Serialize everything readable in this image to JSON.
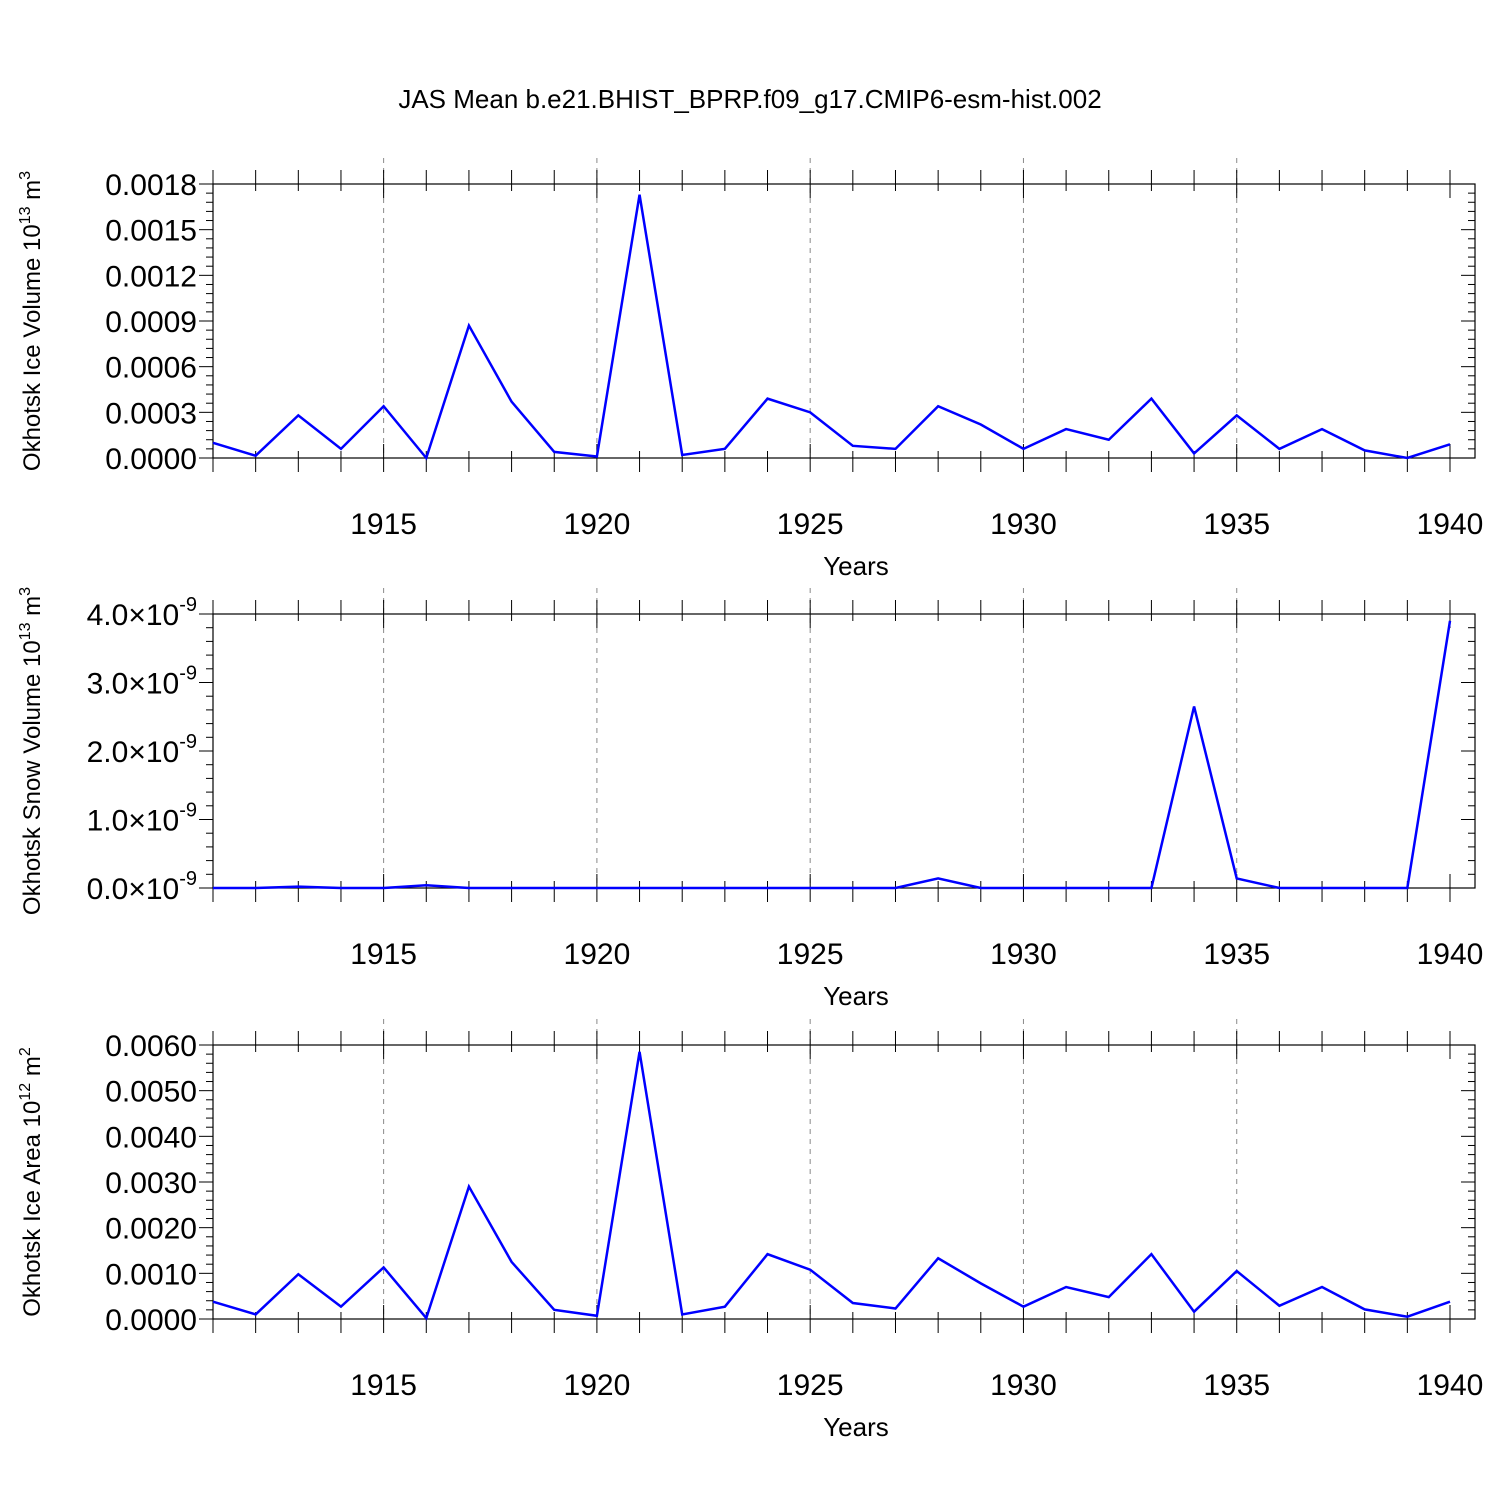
{
  "chart_data": [
    {
      "type": "line",
      "title": "JAS Mean b.e21.BHIST_BPRP.f09_g17.CMIP6-esm-hist.002",
      "xlabel": "Years",
      "ylabel": "Okhotsk Ice Volume 10",
      "ylabel_exp": "13",
      "ylabel_unit": " m",
      "ylabel_unit_exp": "3",
      "xlim": [
        1911,
        1940
      ],
      "ylim": [
        0,
        0.0018
      ],
      "xticks": [
        "1915",
        "1920",
        "1925",
        "1930",
        "1935",
        "1940"
      ],
      "yticks": [
        "0.0000",
        "0.0003",
        "0.0006",
        "0.0009",
        "0.0012",
        "0.0015",
        "0.0018"
      ],
      "series": [
        {
          "name": "Okhotsk Ice Volume",
          "color": "#0000ff",
          "x": [
            1911,
            1912,
            1913,
            1914,
            1915,
            1916,
            1917,
            1918,
            1919,
            1920,
            1921,
            1922,
            1923,
            1924,
            1925,
            1926,
            1927,
            1928,
            1929,
            1930,
            1931,
            1932,
            1933,
            1934,
            1935,
            1936,
            1937,
            1938,
            1939,
            1940
          ],
          "values": [
            0.0001,
            1.5e-05,
            0.00028,
            6e-05,
            0.00034,
            0.0,
            0.00087,
            0.00037,
            4e-05,
            1e-05,
            0.00173,
            2e-05,
            6e-05,
            0.00039,
            0.0003,
            8e-05,
            6e-05,
            0.00034,
            0.00022,
            6e-05,
            0.00019,
            0.00012,
            0.00039,
            3e-05,
            0.00028,
            6e-05,
            0.00019,
            5e-05,
            0.0,
            9e-05
          ]
        }
      ]
    },
    {
      "type": "line",
      "xlabel": "Years",
      "ylabel": "Okhotsk Snow Volume 10",
      "ylabel_exp": "13",
      "ylabel_unit": " m",
      "ylabel_unit_exp": "3",
      "xlim": [
        1911,
        1940
      ],
      "ylim": [
        0,
        4e-09
      ],
      "xticks": [
        "1915",
        "1920",
        "1925",
        "1930",
        "1935",
        "1940"
      ],
      "yticks": [
        "0.0",
        "1.0",
        "2.0",
        "3.0",
        "4.0"
      ],
      "ytick_suffix": "×10",
      "ytick_exp": "-9",
      "series": [
        {
          "name": "Okhotsk Snow Volume",
          "color": "#0000ff",
          "x": [
            1911,
            1912,
            1913,
            1914,
            1915,
            1916,
            1917,
            1918,
            1919,
            1920,
            1921,
            1922,
            1923,
            1924,
            1925,
            1926,
            1927,
            1928,
            1929,
            1930,
            1931,
            1932,
            1933,
            1934,
            1935,
            1936,
            1937,
            1938,
            1939,
            1940
          ],
          "values": [
            0,
            0,
            2e-11,
            0,
            0,
            4e-11,
            0,
            0,
            0,
            0,
            0,
            0,
            0,
            0,
            0,
            0,
            0,
            1.4e-10,
            0,
            0,
            0,
            0,
            0,
            2.65e-09,
            1.4e-10,
            0,
            0,
            0,
            0,
            3.9e-09
          ]
        }
      ]
    },
    {
      "type": "line",
      "xlabel": "Years",
      "ylabel": "Okhotsk Ice Area 10",
      "ylabel_exp": "12",
      "ylabel_unit": " m",
      "ylabel_unit_exp": "2",
      "xlim": [
        1911,
        1940
      ],
      "ylim": [
        0,
        0.006
      ],
      "xticks": [
        "1915",
        "1920",
        "1925",
        "1930",
        "1935",
        "1940"
      ],
      "yticks": [
        "0.0000",
        "0.0010",
        "0.0020",
        "0.0030",
        "0.0040",
        "0.0050",
        "0.0060"
      ],
      "series": [
        {
          "name": "Okhotsk Ice Area",
          "color": "#0000ff",
          "x": [
            1911,
            1912,
            1913,
            1914,
            1915,
            1916,
            1917,
            1918,
            1919,
            1920,
            1921,
            1922,
            1923,
            1924,
            1925,
            1926,
            1927,
            1928,
            1929,
            1930,
            1931,
            1932,
            1933,
            1934,
            1935,
            1936,
            1937,
            1938,
            1939,
            1940
          ],
          "values": [
            0.00038,
            0.0001,
            0.00098,
            0.00027,
            0.00113,
            2e-05,
            0.0029,
            0.00125,
            0.0002,
            7e-05,
            0.00585,
            0.0001,
            0.00027,
            0.00142,
            0.00108,
            0.00035,
            0.00023,
            0.00133,
            0.00078,
            0.00027,
            0.0007,
            0.00048,
            0.00142,
            0.00016,
            0.00105,
            0.00029,
            0.0007,
            0.00021,
            5e-05,
            0.00038
          ]
        }
      ]
    }
  ]
}
